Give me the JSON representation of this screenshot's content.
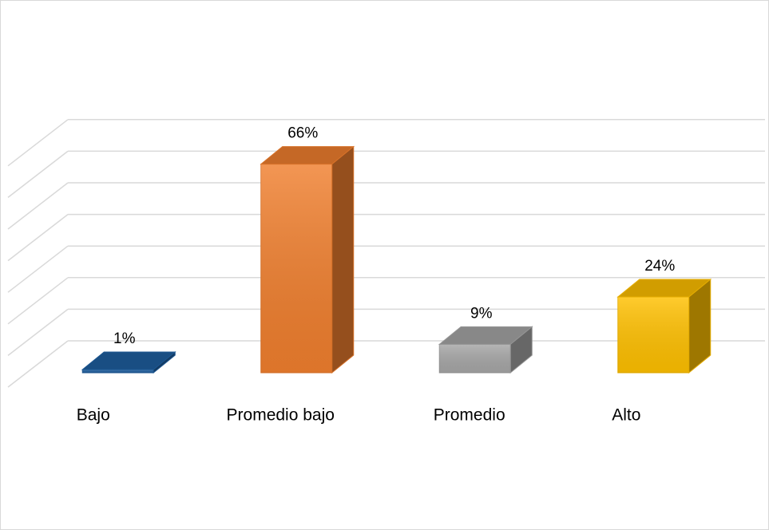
{
  "chart_data": {
    "type": "bar3d",
    "categories": [
      "Bajo",
      "Promedio bajo",
      "Promedio",
      "Alto"
    ],
    "values": [
      1,
      66,
      9,
      24
    ],
    "value_labels": [
      "1%",
      "66%",
      "9%",
      "24%"
    ],
    "colors": [
      "#1f5fa0",
      "#f07f2e",
      "#a6a6a6",
      "#ffc000"
    ],
    "ylim": [
      0,
      80
    ],
    "yticks": [
      0,
      10,
      20,
      30,
      40,
      50,
      60,
      70
    ],
    "grid": true
  }
}
